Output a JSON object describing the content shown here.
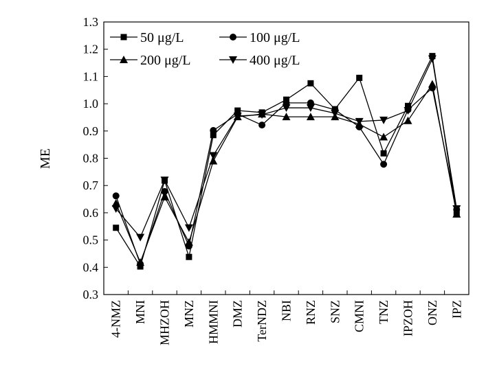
{
  "chart_data": {
    "type": "line",
    "title": "",
    "xlabel": "",
    "ylabel": "ME",
    "ylim": [
      0.3,
      1.3
    ],
    "yticks": [
      "0.3",
      "0.4",
      "0.5",
      "0.6",
      "0.7",
      "0.8",
      "0.9",
      "1.0",
      "1.1",
      "1.2",
      "1.3"
    ],
    "grid": false,
    "legend_position": "top-left",
    "categories": [
      "4-NMZ",
      "MNI",
      "MHZOH",
      "MNZ",
      "HMMNI",
      "DMZ",
      "TerNDZ",
      "NBI",
      "RNZ",
      "SNZ",
      "CMNI",
      "TNZ",
      "IPZOH",
      "ONZ",
      "IPZ"
    ],
    "series": [
      {
        "name": "50 μg/L",
        "marker": "square",
        "values": [
          0.545,
          0.403,
          0.718,
          0.438,
          0.885,
          0.975,
          0.968,
          1.015,
          1.075,
          0.98,
          1.095,
          0.818,
          0.992,
          1.175,
          0.595
        ]
      },
      {
        "name": "100 μg/L",
        "marker": "circle",
        "values": [
          0.662,
          0.412,
          0.678,
          0.478,
          0.902,
          0.962,
          0.922,
          1.003,
          1.003,
          0.978,
          0.915,
          0.778,
          0.978,
          1.058,
          0.612
        ]
      },
      {
        "name": "200 μg/L",
        "marker": "triangle-up",
        "values": [
          0.635,
          0.418,
          0.658,
          0.492,
          0.79,
          0.952,
          0.962,
          0.952,
          0.952,
          0.952,
          0.925,
          0.878,
          0.938,
          1.072,
          0.595
        ]
      },
      {
        "name": "400 μg/L",
        "marker": "triangle-down",
        "values": [
          0.615,
          0.51,
          0.72,
          0.545,
          0.81,
          0.955,
          0.96,
          0.985,
          0.985,
          0.965,
          0.935,
          0.94,
          0.975,
          1.165,
          0.615
        ]
      }
    ]
  }
}
